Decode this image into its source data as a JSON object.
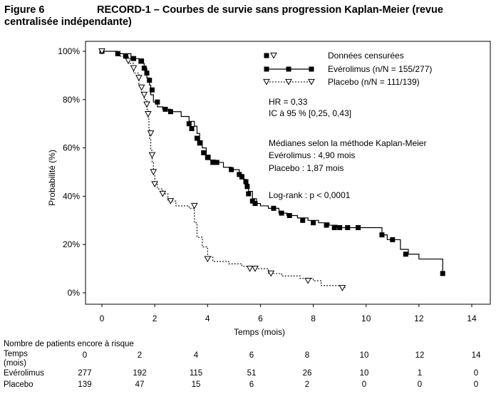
{
  "figure_label": "Figure 6",
  "figure_title": "RECORD-1 – Courbes de survie sans progression Kaplan-Meier (revue centralisée indépendante)",
  "chart_data": {
    "type": "line",
    "subtype": "kaplan-meier",
    "xlabel": "Temps (mois)",
    "ylabel": "Probabilité (%)",
    "xlim": [
      0,
      14
    ],
    "ylim": [
      0,
      100
    ],
    "x_ticks": [
      "0",
      "2",
      "4",
      "6",
      "8",
      "10",
      "12",
      "14"
    ],
    "y_ticks": [
      "0%",
      "20%",
      "40%",
      "60%",
      "80%",
      "100%"
    ],
    "grid": false,
    "legend_position": "top-right",
    "legend_title": "Données censurées",
    "series": [
      {
        "name": "Evérolimus (n/N = 155/277)",
        "line_style": "solid",
        "marker": "filled-square",
        "color": "#000000",
        "points": [
          [
            0,
            100
          ],
          [
            0.6,
            99
          ],
          [
            1.1,
            97
          ],
          [
            1.4,
            95
          ],
          [
            1.6,
            93
          ],
          [
            1.7,
            89
          ],
          [
            1.8,
            86
          ],
          [
            1.85,
            82
          ],
          [
            1.95,
            79
          ],
          [
            2.1,
            77
          ],
          [
            2.3,
            76
          ],
          [
            2.6,
            75
          ],
          [
            3.0,
            73
          ],
          [
            3.3,
            71
          ],
          [
            3.5,
            69
          ],
          [
            3.6,
            66
          ],
          [
            3.7,
            63
          ],
          [
            3.8,
            60
          ],
          [
            3.95,
            57
          ],
          [
            4.1,
            55
          ],
          [
            4.3,
            54
          ],
          [
            4.6,
            52
          ],
          [
            4.9,
            51
          ],
          [
            5.2,
            49
          ],
          [
            5.35,
            47
          ],
          [
            5.45,
            45
          ],
          [
            5.55,
            42
          ],
          [
            5.7,
            39
          ],
          [
            5.85,
            37
          ],
          [
            6.0,
            36
          ],
          [
            6.3,
            35
          ],
          [
            6.7,
            33
          ],
          [
            7.0,
            32
          ],
          [
            7.4,
            31
          ],
          [
            7.8,
            30
          ],
          [
            8.2,
            29
          ],
          [
            8.6,
            28
          ],
          [
            8.9,
            27
          ],
          [
            10.6,
            24
          ],
          [
            10.8,
            22
          ],
          [
            11.3,
            18
          ],
          [
            11.6,
            16
          ],
          [
            12.0,
            14
          ],
          [
            12.9,
            8
          ]
        ],
        "censored": [
          [
            0,
            100
          ],
          [
            0.6,
            99
          ],
          [
            0.9,
            98
          ],
          [
            1.2,
            97
          ],
          [
            1.5,
            96
          ],
          [
            1.6,
            93
          ],
          [
            1.7,
            91
          ],
          [
            1.8,
            88
          ],
          [
            1.9,
            84
          ],
          [
            2.1,
            79
          ],
          [
            2.4,
            76
          ],
          [
            2.6,
            75
          ],
          [
            3.3,
            70
          ],
          [
            3.4,
            68
          ],
          [
            3.6,
            64
          ],
          [
            3.7,
            62
          ],
          [
            3.85,
            58
          ],
          [
            4.0,
            56
          ],
          [
            4.2,
            54
          ],
          [
            4.35,
            54
          ],
          [
            4.9,
            51
          ],
          [
            5.2,
            49
          ],
          [
            5.3,
            48
          ],
          [
            5.45,
            46
          ],
          [
            5.5,
            44
          ],
          [
            5.55,
            41
          ],
          [
            5.7,
            38
          ],
          [
            5.8,
            37
          ],
          [
            6.5,
            35
          ],
          [
            6.8,
            33
          ],
          [
            7.1,
            32
          ],
          [
            7.6,
            30
          ],
          [
            8.0,
            29
          ],
          [
            8.5,
            28
          ],
          [
            8.8,
            27
          ],
          [
            9.0,
            27
          ],
          [
            9.3,
            27
          ],
          [
            9.7,
            27
          ],
          [
            10.6,
            24
          ],
          [
            11.0,
            22
          ],
          [
            11.5,
            16
          ],
          [
            12.9,
            8
          ]
        ]
      },
      {
        "name": "Placebo (n/N = 111/139)",
        "line_style": "dotted",
        "marker": "open-triangle-down",
        "color": "#000000",
        "points": [
          [
            0,
            100
          ],
          [
            0.7,
            98
          ],
          [
            1.0,
            95
          ],
          [
            1.2,
            91
          ],
          [
            1.4,
            86
          ],
          [
            1.5,
            83
          ],
          [
            1.6,
            80
          ],
          [
            1.7,
            76
          ],
          [
            1.75,
            72
          ],
          [
            1.78,
            68
          ],
          [
            1.8,
            64
          ],
          [
            1.85,
            59
          ],
          [
            1.9,
            54
          ],
          [
            1.95,
            49
          ],
          [
            2.0,
            45
          ],
          [
            2.1,
            43
          ],
          [
            2.3,
            41
          ],
          [
            2.5,
            38
          ],
          [
            2.8,
            36
          ],
          [
            3.3,
            35
          ],
          [
            3.5,
            29
          ],
          [
            3.6,
            23
          ],
          [
            3.8,
            19
          ],
          [
            4.0,
            15
          ],
          [
            4.2,
            13
          ],
          [
            4.8,
            12
          ],
          [
            5.3,
            11
          ],
          [
            5.8,
            10
          ],
          [
            6.3,
            8
          ],
          [
            6.8,
            7
          ],
          [
            7.5,
            6
          ],
          [
            8.0,
            5
          ],
          [
            8.3,
            3
          ],
          [
            9.2,
            2
          ]
        ],
        "censored": [
          [
            0,
            100
          ],
          [
            1.0,
            96
          ],
          [
            1.2,
            93
          ],
          [
            1.4,
            89
          ],
          [
            1.5,
            85
          ],
          [
            1.6,
            82
          ],
          [
            1.7,
            78
          ],
          [
            1.75,
            74
          ],
          [
            1.85,
            66
          ],
          [
            1.9,
            57
          ],
          [
            1.95,
            50
          ],
          [
            2.0,
            45
          ],
          [
            2.3,
            41
          ],
          [
            2.6,
            38
          ],
          [
            3.5,
            36
          ],
          [
            4.0,
            14
          ],
          [
            5.6,
            10
          ],
          [
            5.8,
            10
          ],
          [
            6.4,
            8
          ],
          [
            7.8,
            5
          ],
          [
            9.1,
            2
          ]
        ]
      }
    ],
    "annotations": {
      "hr": "HR = 0,33",
      "ic": "IC à 95 % [0,25, 0,43]",
      "median_title": "Médianes selon la méthode Kaplan-Meier",
      "median_everolimus": "Evérolimus : 4,90 mois",
      "median_placebo": "Placebo : 1,87 mois",
      "logrank": "Log-rank : p < 0,0001"
    }
  },
  "risk_table": {
    "title": "Nombre de patients encore à risque",
    "row_label_time": "Temps (mois)",
    "time_values": [
      "0",
      "2",
      "4",
      "6",
      "8",
      "10",
      "12",
      "14"
    ],
    "rows": [
      {
        "label": "Evérolimus",
        "values": [
          "277",
          "192",
          "115",
          "51",
          "26",
          "10",
          "1",
          "0"
        ]
      },
      {
        "label": "Placebo",
        "values": [
          "139",
          "47",
          "15",
          "6",
          "2",
          "0",
          "0",
          "0"
        ]
      }
    ]
  }
}
